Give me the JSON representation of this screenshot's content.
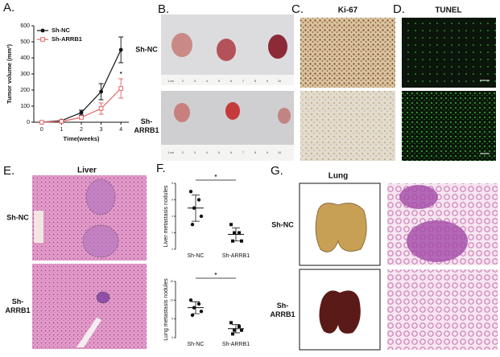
{
  "panel_labels": [
    "A.",
    "B.",
    "C.",
    "D.",
    "E.",
    "F.",
    "G."
  ],
  "B": {
    "row_labels": [
      [
        "Sh-NC"
      ],
      [
        "Sh-",
        "ARRB1"
      ]
    ],
    "ruler": [
      "1 cm",
      "2",
      "3",
      "4",
      "5",
      "6",
      "7",
      "8",
      "9",
      "10"
    ]
  },
  "C": {
    "title": "Ki-67"
  },
  "D": {
    "title": "TUNEL"
  },
  "E": {
    "title": "Liver",
    "row_labels": [
      [
        "Sh-NC"
      ],
      [
        "Sh-",
        "ARRB1"
      ]
    ]
  },
  "G": {
    "title": "Lung",
    "row_labels": [
      [
        "Sh-NC"
      ],
      [
        "Sh-",
        "ARRB1"
      ]
    ]
  },
  "chart_data": [
    {
      "type": "line",
      "y_label": "Tumor volume (mm³)",
      "x_label": "Time(weeks)",
      "x": [
        0,
        1,
        2,
        3,
        4
      ],
      "series": [
        {
          "name": "Sh-NC",
          "color": "#111111",
          "marker": "circle",
          "values": [
            0,
            10,
            60,
            190,
            450
          ],
          "errors": [
            0,
            5,
            15,
            50,
            80
          ]
        },
        {
          "name": "Sh-ARRB1",
          "color": "#e06666",
          "marker": "open-square",
          "values": [
            0,
            5,
            30,
            85,
            210
          ],
          "errors": [
            0,
            3,
            10,
            35,
            60
          ]
        }
      ],
      "annotation": "*",
      "xlim": [
        -0.4,
        4.4
      ],
      "ylim": [
        0,
        600
      ],
      "xticks": [
        0,
        1,
        2,
        3,
        4
      ],
      "yticks": [
        0,
        100,
        200,
        300,
        400,
        500,
        600
      ],
      "legend": "upper left"
    },
    {
      "type": "dot",
      "y_label": "Liver metastasis nodules",
      "categories": [
        "Sh-NC",
        "Sh-ARRB1"
      ],
      "values": [
        [
          7,
          6,
          5,
          4,
          3
        ],
        [
          3,
          2,
          2,
          1,
          1
        ]
      ],
      "means": [
        5,
        1.8
      ],
      "sds": [
        1.6,
        0.8
      ],
      "color": "#111111",
      "annotation": "*",
      "ylim": [
        0,
        8
      ],
      "yticks": [
        0,
        2,
        4,
        6,
        8
      ]
    },
    {
      "type": "dot",
      "y_label": "Lung metastasis nodules",
      "categories": [
        "Sh-NC",
        "Sh-ARRB1"
      ],
      "values": [
        [
          10,
          9,
          8,
          7,
          6
        ],
        [
          4,
          3,
          2,
          2,
          1
        ]
      ],
      "means": [
        8,
        2.4
      ],
      "sds": [
        1.6,
        1.1
      ],
      "color": "#111111",
      "annotation": "*",
      "ylim": [
        0,
        15
      ],
      "yticks": [
        0,
        5,
        10,
        15
      ]
    }
  ]
}
